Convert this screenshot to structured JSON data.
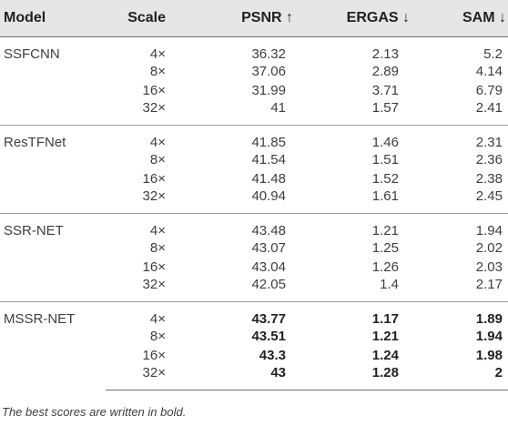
{
  "headers": {
    "model": "Model",
    "scale": "Scale",
    "psnr": "PSNR ↑",
    "ergas": "ERGAS ↓",
    "sam": "SAM ↓"
  },
  "groups": [
    {
      "model": "SSFCNN",
      "rows": [
        {
          "scale": "4×",
          "psnr": "36.32",
          "ergas": "2.13",
          "sam": "5.2"
        },
        {
          "scale": "8×",
          "psnr": "37.06",
          "ergas": "2.89",
          "sam": "4.14"
        },
        {
          "scale": "16×",
          "psnr": "31.99",
          "ergas": "3.71",
          "sam": "6.79"
        },
        {
          "scale": "32×",
          "psnr": "41",
          "ergas": "1.57",
          "sam": "2.41"
        }
      ]
    },
    {
      "model": "ResTFNet",
      "rows": [
        {
          "scale": "4×",
          "psnr": "41.85",
          "ergas": "1.46",
          "sam": "2.31"
        },
        {
          "scale": "8×",
          "psnr": "41.54",
          "ergas": "1.51",
          "sam": "2.36"
        },
        {
          "scale": "16×",
          "psnr": "41.48",
          "ergas": "1.52",
          "sam": "2.38"
        },
        {
          "scale": "32×",
          "psnr": "40.94",
          "ergas": "1.61",
          "sam": "2.45"
        }
      ]
    },
    {
      "model": "SSR-NET",
      "rows": [
        {
          "scale": "4×",
          "psnr": "43.48",
          "ergas": "1.21",
          "sam": "1.94"
        },
        {
          "scale": "8×",
          "psnr": "43.07",
          "ergas": "1.25",
          "sam": "2.02"
        },
        {
          "scale": "16×",
          "psnr": "43.04",
          "ergas": "1.26",
          "sam": "2.03"
        },
        {
          "scale": "32×",
          "psnr": "42.05",
          "ergas": "1.4",
          "sam": "2.17"
        }
      ]
    },
    {
      "model": "MSSR-NET",
      "rows": [
        {
          "scale": "4×",
          "psnr": "43.77",
          "ergas": "1.17",
          "sam": "1.89"
        },
        {
          "scale": "8×",
          "psnr": "43.51",
          "ergas": "1.21",
          "sam": "1.94"
        },
        {
          "scale": "16×",
          "psnr": "43.3",
          "ergas": "1.24",
          "sam": "1.98"
        },
        {
          "scale": "32×",
          "psnr": "43",
          "ergas": "1.28",
          "sam": "2"
        }
      ]
    }
  ],
  "note": "The best scores are written in bold."
}
